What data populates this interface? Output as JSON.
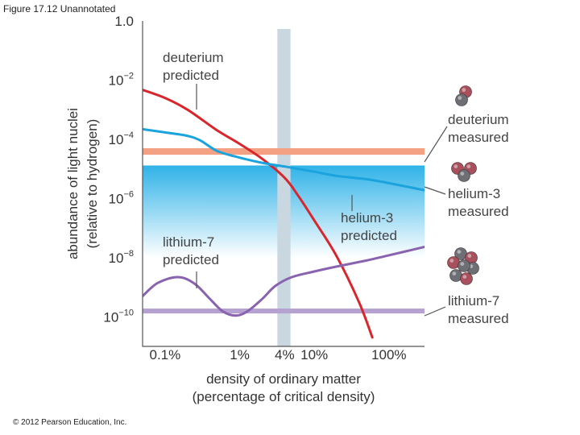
{
  "slide": {
    "title": "Figure 17.12 Unannotated",
    "copyright": "© 2012 Pearson Education, Inc."
  },
  "chart_data": {
    "type": "line",
    "title": "",
    "xlabel_lines": [
      "density of ordinary matter",
      "(percentage of critical density)"
    ],
    "ylabel_lines": [
      "abundance of light nuclei",
      "(relative to hydrogen)"
    ],
    "x_scale": "log",
    "y_scale": "log",
    "xlim": [
      0.05,
      300
    ],
    "ylim": [
      1e-11,
      1.0
    ],
    "x_tick_labels": [
      {
        "x": 0.1,
        "label": "0.1%"
      },
      {
        "x": 1,
        "label": "1%"
      },
      {
        "x": 4,
        "label": "4%"
      },
      {
        "x": 10,
        "label": "10%"
      },
      {
        "x": 100,
        "label": "100%"
      }
    ],
    "y_tick_labels": [
      {
        "y": 1.0,
        "base": "1.0",
        "exp": ""
      },
      {
        "y": 0.01,
        "base": "10",
        "exp": "−2"
      },
      {
        "y": 0.0001,
        "base": "10",
        "exp": "−4"
      },
      {
        "y": 1e-06,
        "base": "10",
        "exp": "−6"
      },
      {
        "y": 1e-08,
        "base": "10",
        "exp": "−8"
      },
      {
        "y": 1e-10,
        "base": "10",
        "exp": "−10"
      }
    ],
    "series": [
      {
        "name": "deuterium predicted",
        "color": "#d9262c",
        "points": [
          [
            0.05,
            0.0047
          ],
          [
            0.1,
            0.0025
          ],
          [
            0.2,
            0.001
          ],
          [
            0.5,
            0.0002
          ],
          [
            1,
            7e-05
          ],
          [
            2,
            2.2e-05
          ],
          [
            4,
            5e-06
          ],
          [
            6,
            1.3e-06
          ],
          [
            10,
            1.8e-07
          ],
          [
            20,
            1.1e-08
          ],
          [
            40,
            3e-10
          ],
          [
            60,
            2e-11
          ]
        ]
      },
      {
        "name": "helium-3 predicted",
        "color": "#1ba3dd",
        "points": [
          [
            0.05,
            0.00022
          ],
          [
            0.1,
            0.00017
          ],
          [
            0.2,
            0.00013
          ],
          [
            0.3,
            9e-05
          ],
          [
            0.5,
            4e-05
          ],
          [
            1,
            2.4e-05
          ],
          [
            2,
            1.6e-05
          ],
          [
            4,
            1.2e-05
          ],
          [
            10,
            8e-06
          ],
          [
            20,
            5.8e-06
          ],
          [
            50,
            4.5e-06
          ],
          [
            100,
            3.3e-06
          ],
          [
            300,
            1.9e-06
          ]
        ]
      },
      {
        "name": "lithium-7 predicted",
        "color": "#8a63b0",
        "points": [
          [
            0.05,
            5e-10
          ],
          [
            0.08,
            1.4e-09
          ],
          [
            0.15,
            2.2e-09
          ],
          [
            0.25,
            1.3e-09
          ],
          [
            0.4,
            4e-10
          ],
          [
            0.6,
            1.5e-10
          ],
          [
            0.9,
            1.1e-10
          ],
          [
            1.3,
            1.6e-10
          ],
          [
            2,
            4e-10
          ],
          [
            3,
            1.1e-09
          ],
          [
            5,
            2.2e-09
          ],
          [
            10,
            3.4e-09
          ],
          [
            20,
            5e-09
          ],
          [
            50,
            8e-09
          ],
          [
            100,
            1.2e-08
          ],
          [
            300,
            2.3e-08
          ]
        ]
      }
    ],
    "bands": [
      {
        "name": "deuterium measured",
        "color": "#f4a183",
        "y_low": 3e-05,
        "y_high": 5e-05
      },
      {
        "name": "helium-3 measured",
        "color": "#2fb2e8",
        "color_bottom": "#ffffff",
        "y_low": 1e-08,
        "y_high": 1.3e-05
      },
      {
        "name": "lithium-7 measured",
        "color": "#b6a2d0",
        "y_low": 1.3e-10,
        "y_high": 1.9e-10
      }
    ],
    "highlight_column": {
      "x_low": 3.2,
      "x_high": 4.8,
      "color": "#c9d7e0"
    },
    "annotations": [
      {
        "series": "deuterium predicted",
        "lines": [
          "deuterium",
          "predicted"
        ]
      },
      {
        "series": "helium-3 predicted",
        "lines": [
          "helium-3",
          "predicted"
        ]
      },
      {
        "series": "lithium-7 predicted",
        "lines": [
          "lithium-7",
          "predicted"
        ]
      },
      {
        "series": "deuterium measured",
        "lines": [
          "deuterium",
          "measured"
        ],
        "icon": "deuterium-nucleus-icon"
      },
      {
        "series": "helium-3 measured",
        "lines": [
          "helium-3",
          "measured"
        ],
        "icon": "helium-3-nucleus-icon"
      },
      {
        "series": "lithium-7 measured",
        "lines": [
          "lithium-7",
          "measured"
        ],
        "icon": "lithium-7-nucleus-icon"
      }
    ],
    "grid": false,
    "legend": "none",
    "particle_colors": {
      "proton": "#a8505c",
      "neutron": "#6d6f75"
    }
  }
}
